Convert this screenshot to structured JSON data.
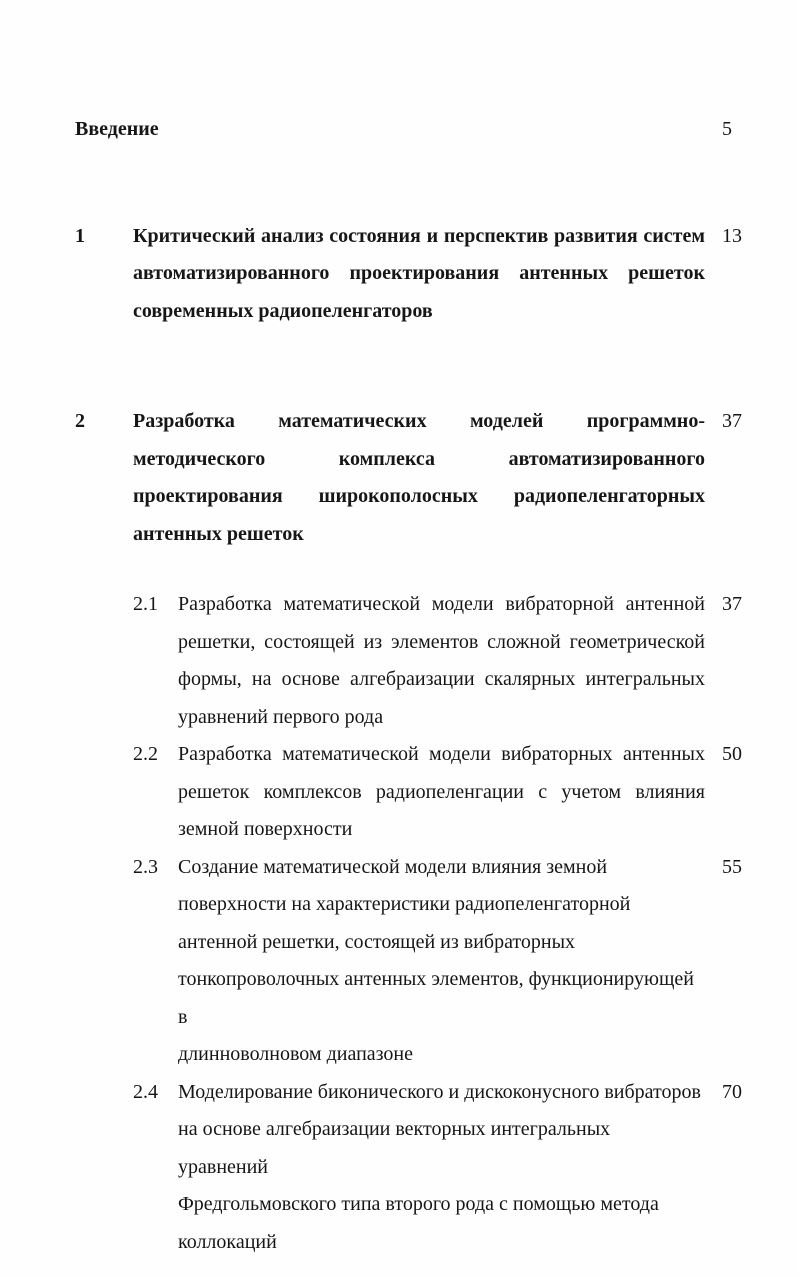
{
  "page": {
    "background": "#fefefe",
    "text_color": "#161616",
    "language": "ru",
    "kind": "table-of-contents"
  },
  "toc": {
    "entries": [
      {
        "number": "",
        "level": "root",
        "bold": true,
        "justify": false,
        "lines": [
          "Введение"
        ],
        "page": "5"
      },
      {
        "number": "1",
        "level": "chapter",
        "bold": true,
        "justify": true,
        "lines": [
          "Критический анализ состояния и перспектив развития систем",
          "автоматизированного проектирования антенных решеток",
          "современных радиопеленгаторов"
        ],
        "page": "13"
      },
      {
        "number": "2",
        "level": "chapter",
        "bold": true,
        "justify": true,
        "lines": [
          "Разработка математических моделей программно-",
          "методического комплекса автоматизированного",
          "проектирования широкополосных радиопеленгаторных",
          "антенных решеток"
        ],
        "page": "37"
      },
      {
        "number": "2.1",
        "level": "sub",
        "bold": false,
        "justify": true,
        "lines": [
          "Разработка математической модели вибраторной антенной",
          "решетки, состоящей из элементов сложной геометрической",
          "формы, на основе алгебраизации скалярных интегральных",
          "уравнений первого рода"
        ],
        "page": "37"
      },
      {
        "number": "2.2",
        "level": "sub",
        "bold": false,
        "justify": true,
        "lines": [
          "Разработка математической модели вибраторных антенных",
          "решеток комплексов радиопеленгации с учетом влияния",
          "земной поверхности"
        ],
        "page": "50"
      },
      {
        "number": "2.3",
        "level": "sub",
        "bold": false,
        "justify": false,
        "lines": [
          "Создание математической модели влияния земной",
          "поверхности на характеристики радиопеленгаторной",
          "антенной решетки, состоящей из вибраторных",
          "тонкопроволочных антенных элементов, функционирующей в",
          "длинноволновом диапазоне"
        ],
        "page": "55"
      },
      {
        "number": "2.4",
        "level": "sub",
        "bold": false,
        "justify": false,
        "lines": [
          "Моделирование биконического и дискоконусного вибраторов",
          "на основе алгебраизации векторных интегральных уравнений",
          "Фредгольмовского типа второго рода с помощью метода",
          "коллокаций"
        ],
        "page": "70"
      }
    ]
  }
}
